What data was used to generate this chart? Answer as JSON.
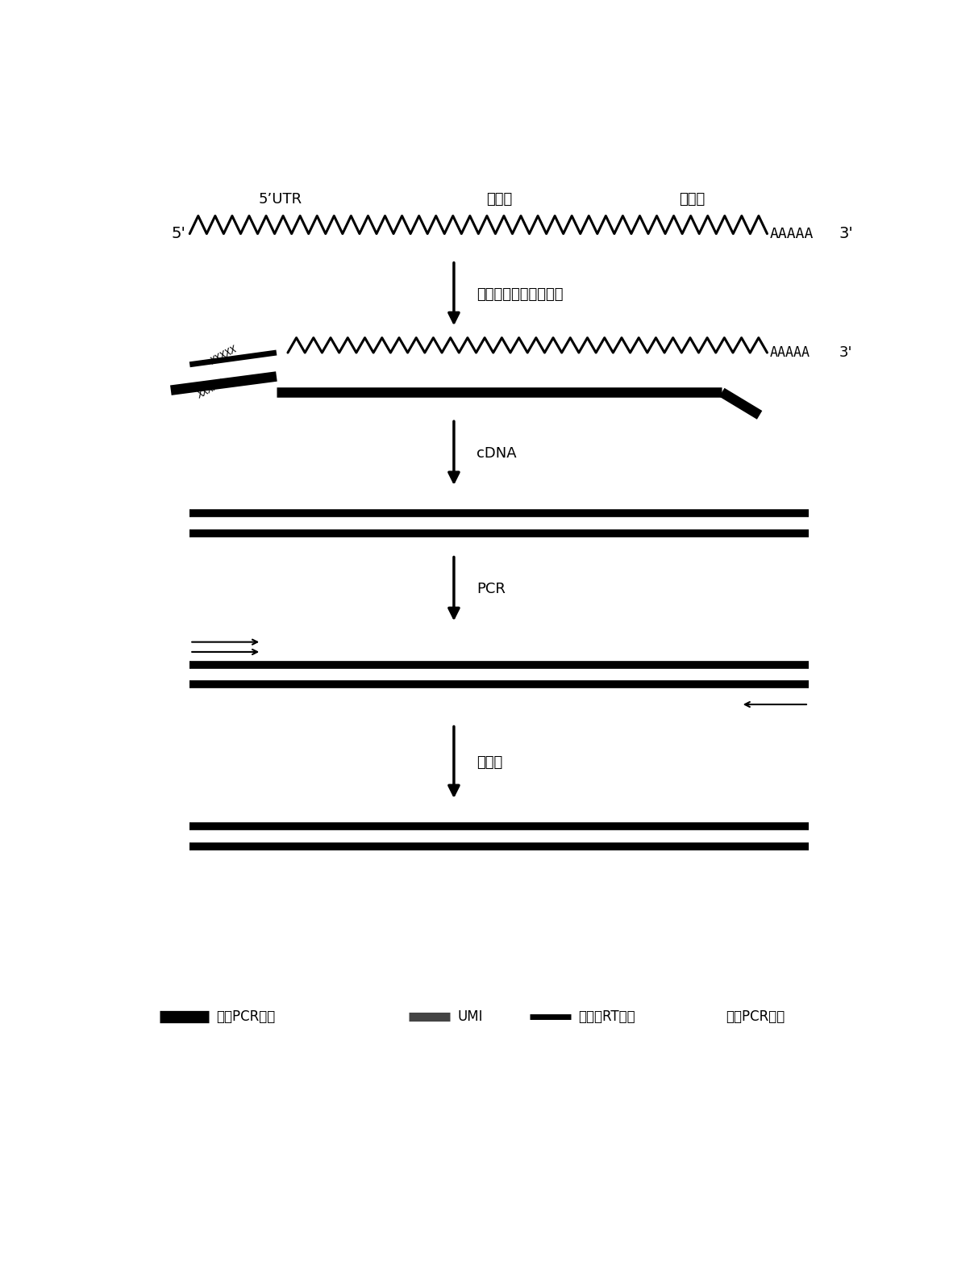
{
  "bg_color": "#ffffff",
  "fig_width": 12.08,
  "fig_height": 15.95,
  "labels": {
    "utr": "5’UTR",
    "variable": "可变区",
    "constant": "恒定区",
    "step1": "特异逆转录与模板置换",
    "step2": "cDNA",
    "step3": "PCR",
    "step4": "终产物",
    "legend1": "上游PCR引物",
    "legend2": "UMI",
    "legend3": "特异性RT引物",
    "legend4": "下游PCR引物"
  }
}
